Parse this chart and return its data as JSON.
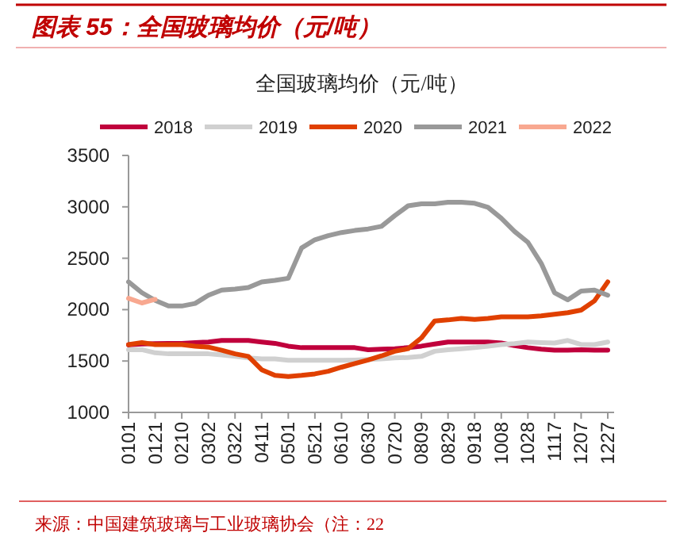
{
  "chart_data": {
    "type": "line",
    "title": "图表 55：全国玻璃均价（元/吨）",
    "subtitle": "全国玻璃均价（元/吨）",
    "categories": [
      "0101",
      null,
      "0121",
      null,
      "0210",
      null,
      "0302",
      null,
      "0322",
      null,
      "0411",
      null,
      "0501",
      null,
      "0521",
      null,
      "0610",
      null,
      "0630",
      null,
      "0720",
      null,
      "0809",
      null,
      "0829",
      null,
      "0918",
      null,
      "1008",
      null,
      "1028",
      null,
      "1117",
      null,
      "1207",
      null,
      "1227"
    ],
    "series": [
      {
        "name": "2018",
        "color": "#c0003c",
        "values": [
          1657,
          1665,
          1670,
          1672,
          1672,
          1680,
          1685,
          1700,
          1700,
          1700,
          1685,
          1672,
          1645,
          1630,
          1630,
          1630,
          1630,
          1630,
          1610,
          1615,
          1620,
          1630,
          1645,
          1665,
          1685,
          1685,
          1685,
          1685,
          1675,
          1650,
          1630,
          1615,
          1605,
          1605,
          1610,
          1605,
          1605
        ]
      },
      {
        "name": "2019",
        "color": "#d0d0d0",
        "values": [
          1610,
          1610,
          1580,
          1570,
          1570,
          1570,
          1570,
          1560,
          1545,
          1530,
          1520,
          1520,
          1507,
          1507,
          1507,
          1507,
          1507,
          1510,
          1515,
          1520,
          1530,
          1535,
          1545,
          1595,
          1610,
          1620,
          1630,
          1645,
          1660,
          1670,
          1685,
          1680,
          1675,
          1700,
          1660,
          1660,
          1685
        ]
      },
      {
        "name": "2020",
        "color": "#e04000",
        "values": [
          1660,
          1680,
          1660,
          1660,
          1660,
          1645,
          1635,
          1605,
          1570,
          1545,
          1415,
          1360,
          1350,
          1360,
          1375,
          1400,
          1440,
          1475,
          1510,
          1550,
          1595,
          1620,
          1725,
          1890,
          1900,
          1915,
          1905,
          1915,
          1930,
          1930,
          1930,
          1940,
          1955,
          1970,
          1995,
          2085,
          2270
        ]
      },
      {
        "name": "2021",
        "color": "#999999",
        "values": [
          2270,
          2165,
          2090,
          2035,
          2035,
          2060,
          2140,
          2190,
          2200,
          2215,
          2270,
          2285,
          2305,
          2600,
          2680,
          2720,
          2750,
          2770,
          2785,
          2810,
          2915,
          3010,
          3030,
          3030,
          3045,
          3045,
          3035,
          2995,
          2890,
          2760,
          2655,
          2450,
          2165,
          2095,
          2180,
          2190,
          2140
        ]
      },
      {
        "name": "2022",
        "color": "#f8a890",
        "values": [
          2110,
          2065,
          2100,
          null,
          null,
          null,
          null,
          null,
          null,
          null,
          null,
          null,
          null,
          null,
          null,
          null,
          null,
          null,
          null,
          null,
          null,
          null,
          null,
          null,
          null,
          null,
          null,
          null,
          null,
          null,
          null,
          null,
          null,
          null,
          null,
          null,
          null
        ]
      }
    ],
    "ylim": [
      1000,
      3500
    ],
    "yticks": [
      1000,
      1500,
      2000,
      2500,
      3000,
      3500
    ],
    "grid": false,
    "legend": "top",
    "annotations": [
      "来源：中国建筑玻璃与工业玻璃协会（注：22"
    ]
  }
}
